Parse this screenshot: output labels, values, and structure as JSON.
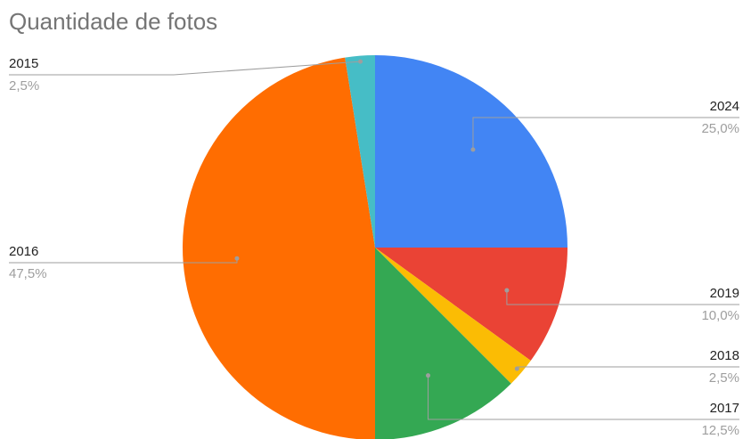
{
  "chart_data": {
    "type": "pie",
    "title": "Quantidade de fotos",
    "categories": [
      "2024",
      "2019",
      "2018",
      "2017",
      "2016",
      "2015"
    ],
    "values": [
      25,
      10,
      2.5,
      12.5,
      47.5,
      2.5
    ],
    "value_labels": [
      "25,0%",
      "10,0%",
      "2,5%",
      "12,5%",
      "47,5%",
      "2,5%"
    ],
    "colors": [
      "#4285f4",
      "#ea4335",
      "#fbbc04",
      "#34a853",
      "#ff6d01",
      "#46bdc6"
    ]
  }
}
